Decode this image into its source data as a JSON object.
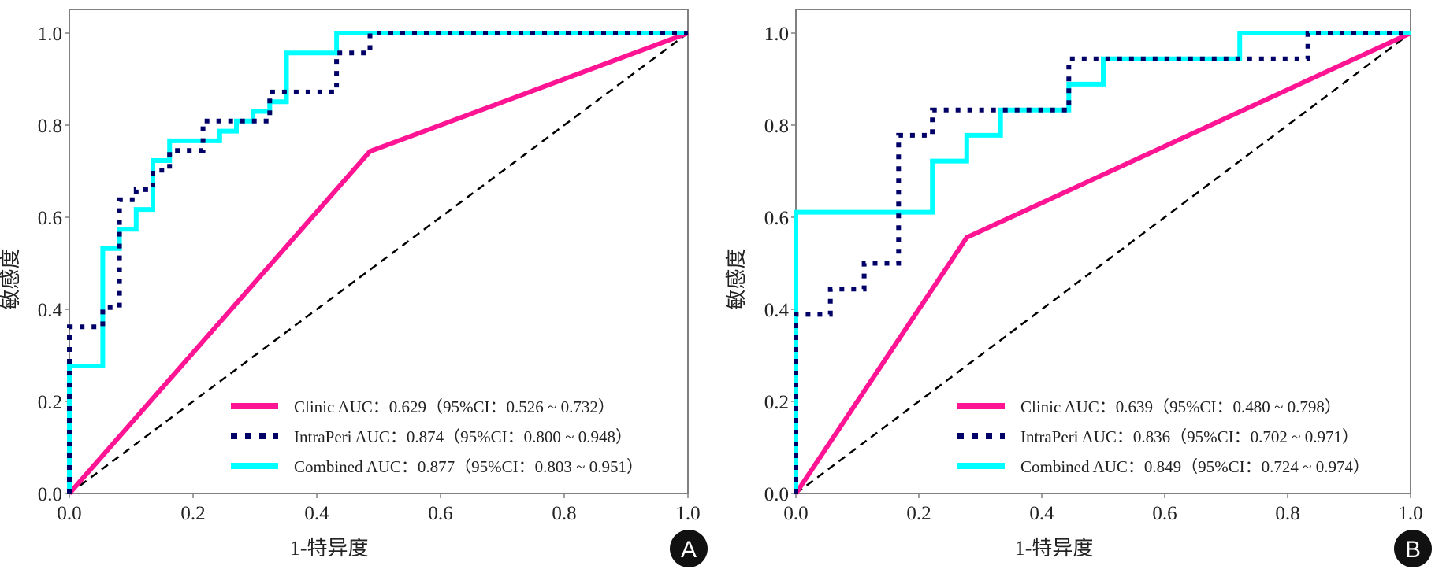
{
  "chart_data": [
    {
      "panel": "A",
      "type": "line",
      "title": "",
      "xlabel": "1-特异度",
      "ylabel": "敏感度",
      "xlim": [
        0,
        1.0
      ],
      "ylim": [
        0,
        1.05
      ],
      "xticks": [
        "0.0",
        "0.2",
        "0.4",
        "0.6",
        "0.8",
        "1.0"
      ],
      "yticks": [
        "0.0",
        "0.2",
        "0.4",
        "0.6",
        "0.8",
        "1.0"
      ],
      "legend_position": "bottom-right",
      "grid": false,
      "reference_line": {
        "name": "chance",
        "x": [
          0,
          1
        ],
        "y": [
          0,
          1
        ],
        "style": "dashed",
        "color": "#000000"
      },
      "series": [
        {
          "name": "Clinic",
          "label": "Clinic AUC：0.629（95%CI：0.526 ~ 0.732）",
          "auc": 0.629,
          "ci": [
            0.526,
            0.732
          ],
          "color": "#ff1493",
          "style": "solid",
          "x": [
            0,
            0.486,
            1.0
          ],
          "y": [
            0,
            0.743,
            1.0
          ]
        },
        {
          "name": "IntraPeri",
          "label": "IntraPeri AUC：0.874（95%CI：0.800 ~ 0.948）",
          "auc": 0.874,
          "ci": [
            0.8,
            0.948
          ],
          "color": "#000066",
          "style": "dotted",
          "x": [
            0,
            0,
            0.054,
            0.054,
            0.081,
            0.081,
            0.108,
            0.108,
            0.135,
            0.135,
            0.162,
            0.162,
            0.216,
            0.216,
            0.243,
            0.243,
            0.324,
            0.324,
            0.432,
            0.432,
            0.486,
            0.486,
            1.0
          ],
          "y": [
            0,
            0.362,
            0.362,
            0.404,
            0.404,
            0.638,
            0.638,
            0.66,
            0.66,
            0.702,
            0.702,
            0.745,
            0.745,
            0.809,
            0.809,
            0.809,
            0.809,
            0.872,
            0.872,
            0.957,
            0.957,
            1.0,
            1.0
          ]
        },
        {
          "name": "Combined",
          "label": "Combined AUC：0.877（95%CI：0.803 ~ 0.951）",
          "auc": 0.877,
          "ci": [
            0.803,
            0.951
          ],
          "color": "#00ffff",
          "style": "solid",
          "x": [
            0,
            0,
            0.054,
            0.054,
            0.081,
            0.081,
            0.108,
            0.108,
            0.135,
            0.135,
            0.162,
            0.162,
            0.243,
            0.243,
            0.27,
            0.27,
            0.297,
            0.297,
            0.324,
            0.324,
            0.351,
            0.351,
            0.432,
            0.432,
            1.0
          ],
          "y": [
            0,
            0.277,
            0.277,
            0.532,
            0.532,
            0.574,
            0.574,
            0.617,
            0.617,
            0.723,
            0.723,
            0.766,
            0.766,
            0.787,
            0.787,
            0.809,
            0.809,
            0.83,
            0.83,
            0.851,
            0.851,
            0.957,
            0.957,
            1.0,
            1.0
          ]
        }
      ]
    },
    {
      "panel": "B",
      "type": "line",
      "title": "",
      "xlabel": "1-特异度",
      "ylabel": "敏感度",
      "xlim": [
        0,
        1.0
      ],
      "ylim": [
        0,
        1.05
      ],
      "xticks": [
        "0.0",
        "0.2",
        "0.4",
        "0.6",
        "0.8",
        "1.0"
      ],
      "yticks": [
        "0.0",
        "0.2",
        "0.4",
        "0.6",
        "0.8",
        "1.0"
      ],
      "legend_position": "bottom-right",
      "grid": false,
      "reference_line": {
        "name": "chance",
        "x": [
          0,
          1
        ],
        "y": [
          0,
          1
        ],
        "style": "dashed",
        "color": "#000000"
      },
      "series": [
        {
          "name": "Clinic",
          "label": "Clinic AUC：0.639（95%CI：0.480 ~ 0.798）",
          "auc": 0.639,
          "ci": [
            0.48,
            0.798
          ],
          "color": "#ff1493",
          "style": "solid",
          "x": [
            0,
            0.278,
            1.0
          ],
          "y": [
            0,
            0.556,
            1.0
          ]
        },
        {
          "name": "IntraPeri",
          "label": "IntraPeri AUC：0.836（95%CI：0.702 ~ 0.971）",
          "auc": 0.836,
          "ci": [
            0.702,
            0.971
          ],
          "color": "#000066",
          "style": "dotted",
          "x": [
            0,
            0,
            0.056,
            0.056,
            0.111,
            0.111,
            0.167,
            0.167,
            0.222,
            0.222,
            0.444,
            0.444,
            0.833,
            0.833,
            1.0
          ],
          "y": [
            0,
            0.389,
            0.389,
            0.444,
            0.444,
            0.5,
            0.5,
            0.778,
            0.778,
            0.833,
            0.833,
            0.944,
            0.944,
            1.0,
            1.0
          ]
        },
        {
          "name": "Combined",
          "label": "Combined AUC：0.849（95%CI：0.724 ~ 0.974）",
          "auc": 0.849,
          "ci": [
            0.724,
            0.974
          ],
          "color": "#00ffff",
          "style": "solid",
          "x": [
            0,
            0,
            0.222,
            0.222,
            0.278,
            0.278,
            0.333,
            0.333,
            0.444,
            0.444,
            0.5,
            0.5,
            0.722,
            0.722,
            1.0
          ],
          "y": [
            0,
            0.611,
            0.611,
            0.722,
            0.722,
            0.778,
            0.778,
            0.833,
            0.833,
            0.889,
            0.889,
            0.944,
            0.944,
            1.0,
            1.0
          ]
        }
      ]
    }
  ],
  "panels": [
    {
      "badge": "A",
      "xlabel": "1-特异度",
      "ylabel": "敏感度"
    },
    {
      "badge": "B",
      "xlabel": "1-特异度",
      "ylabel": "敏感度"
    }
  ],
  "colors": {
    "axis": "#808080",
    "text": "#222222",
    "badge_bg": "#111111"
  }
}
